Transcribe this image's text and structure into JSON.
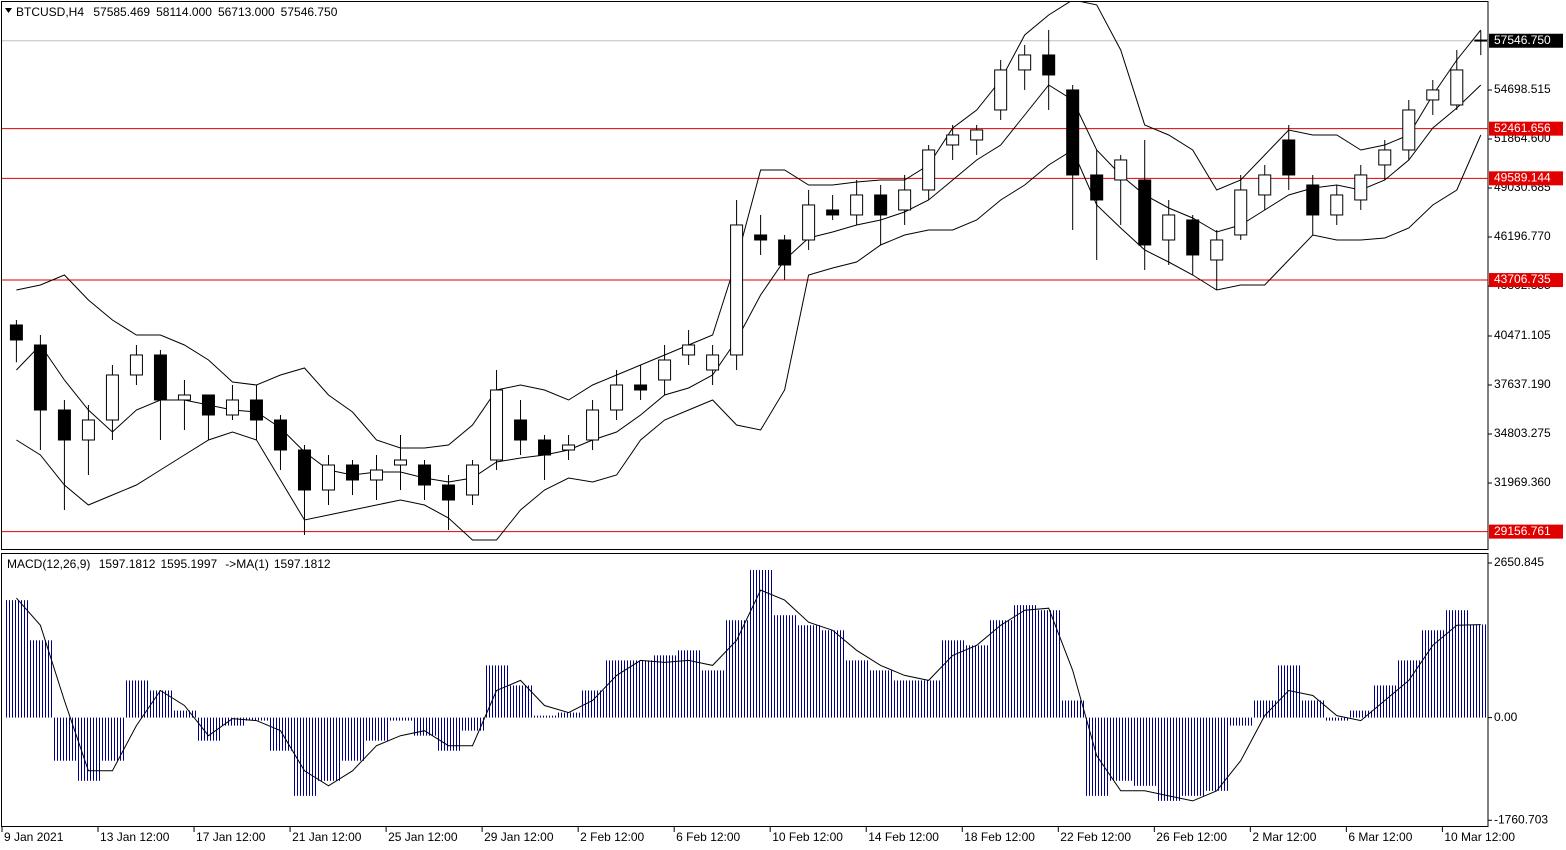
{
  "chart_data": [
    {
      "type": "candlestick",
      "title": "BTCUSD,H4",
      "header_values": [
        57585.469,
        {
          "value": 58114,
          "label": "58114.000"
        },
        {
          "value": 56713,
          "label": "56713.000"
        },
        {
          "value": 57546.75,
          "label": "57546.750"
        }
      ],
      "x": [
        1.1,
        2.1,
        3.1,
        4.1,
        5.1,
        6.1,
        7.1,
        8.1,
        9.1,
        10.1,
        11.1,
        12.1,
        13.1,
        14.1,
        15.1,
        16.1,
        17.1,
        18.1,
        19.1,
        20.1,
        21.1,
        22.1,
        23.1,
        24.1,
        25.1,
        26.1,
        27.1,
        28.1,
        29.1,
        30.1,
        31.1,
        32.1,
        33.1,
        34.1,
        35.1,
        36.1,
        37.1,
        38.1,
        39.1,
        40.1,
        41.1,
        42.1,
        43.1,
        44.1,
        45.1,
        46.1,
        47.1,
        48.1,
        49.1,
        50.1,
        51.1,
        52.1,
        53.1,
        54.1,
        55.1,
        56.1,
        57.1,
        58.1,
        59.1,
        60.1,
        61.1,
        62.1
      ],
      "open": [
        41108,
        39951,
        36191,
        34456,
        35613,
        38216,
        39373,
        36770,
        37059,
        35902,
        36770,
        35613,
        33878,
        31564,
        33010,
        32143,
        33010,
        33010,
        31853,
        31275,
        33299,
        35613,
        34456,
        33878,
        34456,
        36191,
        37637,
        37926,
        39373,
        38505,
        39373,
        46314,
        46024,
        46024,
        47759,
        47470,
        48627,
        47759,
        48916,
        51519,
        51808,
        53543,
        55857,
        56724,
        54701,
        49784,
        49494,
        49494,
        46024,
        47181,
        44867,
        46314,
        48627,
        51808,
        49205,
        47470,
        48338,
        50363,
        51230,
        54122,
        53832,
        57585.469
      ],
      "high": [
        41398,
        40529,
        36770,
        36481,
        38794,
        39951,
        39662,
        37926,
        37059,
        37637,
        37637,
        35902,
        34167,
        33588,
        33299,
        33588,
        34745,
        33299,
        32432,
        33299,
        38505,
        36770,
        34745,
        34745,
        36770,
        38505,
        38794,
        39951,
        40818,
        39951,
        48338,
        47470,
        46314,
        48916,
        48627,
        49494,
        49205,
        49784,
        51519,
        52676,
        52676,
        56435,
        57302,
        58171,
        54990,
        51230,
        50941,
        51808,
        48338,
        47470,
        46603,
        49784,
        50363,
        52676,
        49784,
        49205,
        50363,
        51808,
        54122,
        55279,
        57014,
        58114
      ],
      "low": [
        38951,
        33878,
        30408,
        32432,
        34456,
        37637,
        34456,
        35034,
        34456,
        35613,
        34456,
        32721,
        28961,
        30697,
        31275,
        30986,
        31564,
        30986,
        29250,
        30697,
        32721,
        33588,
        32143,
        33299,
        33878,
        35613,
        36770,
        37059,
        38794,
        37637,
        38505,
        45157,
        43710,
        45446,
        47181,
        46892,
        45735,
        46892,
        48338,
        50652,
        50941,
        52965,
        54701,
        53543,
        46603,
        44867,
        46892,
        44289,
        44578,
        43999,
        43131,
        46024,
        47759,
        48916,
        46314,
        46892,
        47759,
        49494,
        50652,
        53254,
        53543,
        56713
      ],
      "close": [
        40240,
        36191,
        34456,
        35613,
        38216,
        39373,
        36770,
        37059,
        35902,
        36770,
        35613,
        33878,
        31564,
        33010,
        32143,
        32721,
        33299,
        31853,
        30986,
        33010,
        37348,
        34456,
        33588,
        34167,
        36191,
        37637,
        37348,
        39083,
        39951,
        39373,
        46892,
        46024,
        44578,
        48049,
        47470,
        48627,
        47470,
        48916,
        51230,
        52097,
        52386,
        55857,
        56724,
        55568,
        49784,
        48338,
        50652,
        45735,
        47470,
        45157,
        46024,
        48916,
        49784,
        49784,
        47470,
        48627,
        49784,
        51230,
        53543,
        54701,
        55857,
        57546.75
      ],
      "bands": {
        "upper": [
          43132,
          43421,
          44000,
          42554,
          41397,
          40529,
          40529,
          39951,
          39083,
          37811,
          37637,
          38216,
          38621,
          37059,
          36076,
          34456,
          33993,
          33993,
          34167,
          35324,
          37348,
          37637,
          37348,
          36770,
          37637,
          38216,
          38794,
          39373,
          39951,
          40529,
          44867,
          50073,
          50073,
          49205,
          49205,
          49379,
          49495,
          49495,
          50362,
          52502,
          53543,
          55279,
          57881,
          59038,
          59906,
          59617,
          57014,
          52676,
          52097,
          51230,
          48916,
          49495,
          50941,
          52387,
          52097,
          52097,
          51230,
          51519,
          52097,
          54411,
          56435,
          58171
        ],
        "middle": [
          38505,
          39951,
          37927,
          36191,
          34919,
          36191,
          36770,
          36770,
          36481,
          36191,
          36076,
          35150,
          33762,
          32721,
          32432,
          32605,
          32605,
          32258,
          32027,
          32258,
          33184,
          33415,
          33589,
          33878,
          34456,
          34919,
          35902,
          37059,
          37464,
          38216,
          40240,
          42843,
          44867,
          46140,
          46487,
          46892,
          47181,
          47644,
          48338,
          49495,
          50651,
          51519,
          53254,
          54989,
          54122,
          51230,
          49784,
          48627,
          47875,
          47297,
          46487,
          46892,
          47759,
          48627,
          49032,
          49205,
          48916,
          49495,
          50651,
          52502,
          53659,
          54989
        ],
        "lower": [
          34456,
          33589,
          31853,
          30697,
          31275,
          31853,
          32721,
          33589,
          34456,
          34919,
          34456,
          32143,
          29829,
          30118,
          30407,
          30697,
          30986,
          30697,
          29945,
          28672,
          28672,
          30407,
          31564,
          32258,
          32027,
          32432,
          34456,
          35613,
          36191,
          36770,
          35324,
          35035,
          37348,
          44000,
          44405,
          44752,
          45735,
          46313,
          46603,
          46603,
          47181,
          48338,
          49205,
          50362,
          51230,
          48049,
          46718,
          45446,
          44752,
          44000,
          43132,
          43421,
          43421,
          44867,
          46313,
          46024,
          46024,
          46140,
          46718,
          48049,
          48916,
          52097
        ]
      },
      "up_color": "#ffffff",
      "down_color": "#000000",
      "line_color": "#000000",
      "xlim": [
        0.5,
        62.4
      ],
      "ylim": [
        28152,
        59903
      ],
      "yticks": [
        {
          "value": 31969.36,
          "label": "31969.360"
        },
        34803.275,
        {
          "value": 37637.19,
          "label": "37637.190"
        },
        40471.105,
        43362.855,
        {
          "value": 46196.77,
          "label": "46196.770"
        },
        49030.685,
        {
          "value": 51864.6,
          "label": "51864.600"
        },
        54698.515
      ],
      "xticks": [
        {
          "value": 0.5,
          "label": "9 Jan 2021"
        },
        {
          "value": 4.5,
          "label": "13 Jan 12:00"
        },
        {
          "value": 8.5,
          "label": "17 Jan 12:00"
        },
        {
          "value": 12.5,
          "label": "21 Jan 12:00"
        },
        {
          "value": 16.5,
          "label": "25 Jan 12:00"
        },
        {
          "value": 20.5,
          "label": "29 Jan 12:00"
        },
        {
          "value": 24.5,
          "label": "2 Feb 12:00"
        },
        {
          "value": 28.5,
          "label": "6 Feb 12:00"
        },
        {
          "value": 32.5,
          "label": "10 Feb 12:00"
        },
        {
          "value": 36.5,
          "label": "14 Feb 12:00"
        },
        {
          "value": 40.5,
          "label": "18 Feb 12:00"
        },
        {
          "value": 44.5,
          "label": "22 Feb 12:00"
        },
        {
          "value": 48.5,
          "label": "26 Feb 12:00"
        },
        {
          "value": 52.5,
          "label": "2 Mar 12:00"
        },
        {
          "value": 56.5,
          "label": "6 Mar 12:00"
        },
        {
          "value": 60.5,
          "label": "10 Mar 12:00"
        }
      ],
      "levels": [
        52461.656,
        49589.144,
        43706.735,
        29156.761
      ],
      "level_color": "#e00000",
      "price_line": {
        "value": 57546.75,
        "label": "57546.750"
      },
      "price_line_color": "#c0c0c0"
    },
    {
      "type": "macd",
      "title": "MACD(12,26,9)",
      "title_values": [
        1597.1812,
        1595.1997
      ],
      "signal_title": "->MA(1)",
      "signal_value": 1597.1812,
      "histogram": [
        2014,
        1325,
        -740,
        -1084,
        -740,
        637,
        465,
        120,
        -396,
        -138,
        -52,
        -568,
        -1342,
        -1084,
        -740,
        -396,
        -52,
        -310,
        -568,
        -224,
        895,
        551,
        34,
        86,
        465,
        981,
        981,
        1067,
        1153,
        809,
        1669,
        2530,
        1755,
        1583,
        1497,
        981,
        809,
        637,
        637,
        1325,
        1239,
        1669,
        1928,
        1841,
        293,
        -1342,
        -1084,
        -1170,
        -1428,
        -1342,
        -1256,
        -138,
        293,
        895,
        293,
        -52,
        120,
        551,
        981,
        1497,
        1841,
        1597.1812
      ],
      "signal": [
        2048,
        1583,
        293,
        -912,
        -912,
        -138,
        465,
        207,
        -310,
        -17,
        -52,
        -224,
        -912,
        -1170,
        -912,
        -482,
        -310,
        -224,
        -482,
        -482,
        465,
        637,
        207,
        86,
        293,
        723,
        981,
        947,
        981,
        895,
        1325,
        2186,
        2014,
        1635,
        1497,
        1153,
        895,
        723,
        637,
        1067,
        1239,
        1583,
        1841,
        1876,
        809,
        -654,
        -1256,
        -1256,
        -1342,
        -1428,
        -1256,
        -740,
        34,
        465,
        379,
        34,
        -52,
        293,
        637,
        1239,
        1583,
        1595.1997
      ],
      "hist_color": "#000080",
      "signal_color": "#000000",
      "ylim": [
        -1876,
        2822
      ],
      "yticks": [
        -1760.703,
        {
          "value": 0,
          "label": "0.00"
        },
        2650.845
      ]
    }
  ]
}
